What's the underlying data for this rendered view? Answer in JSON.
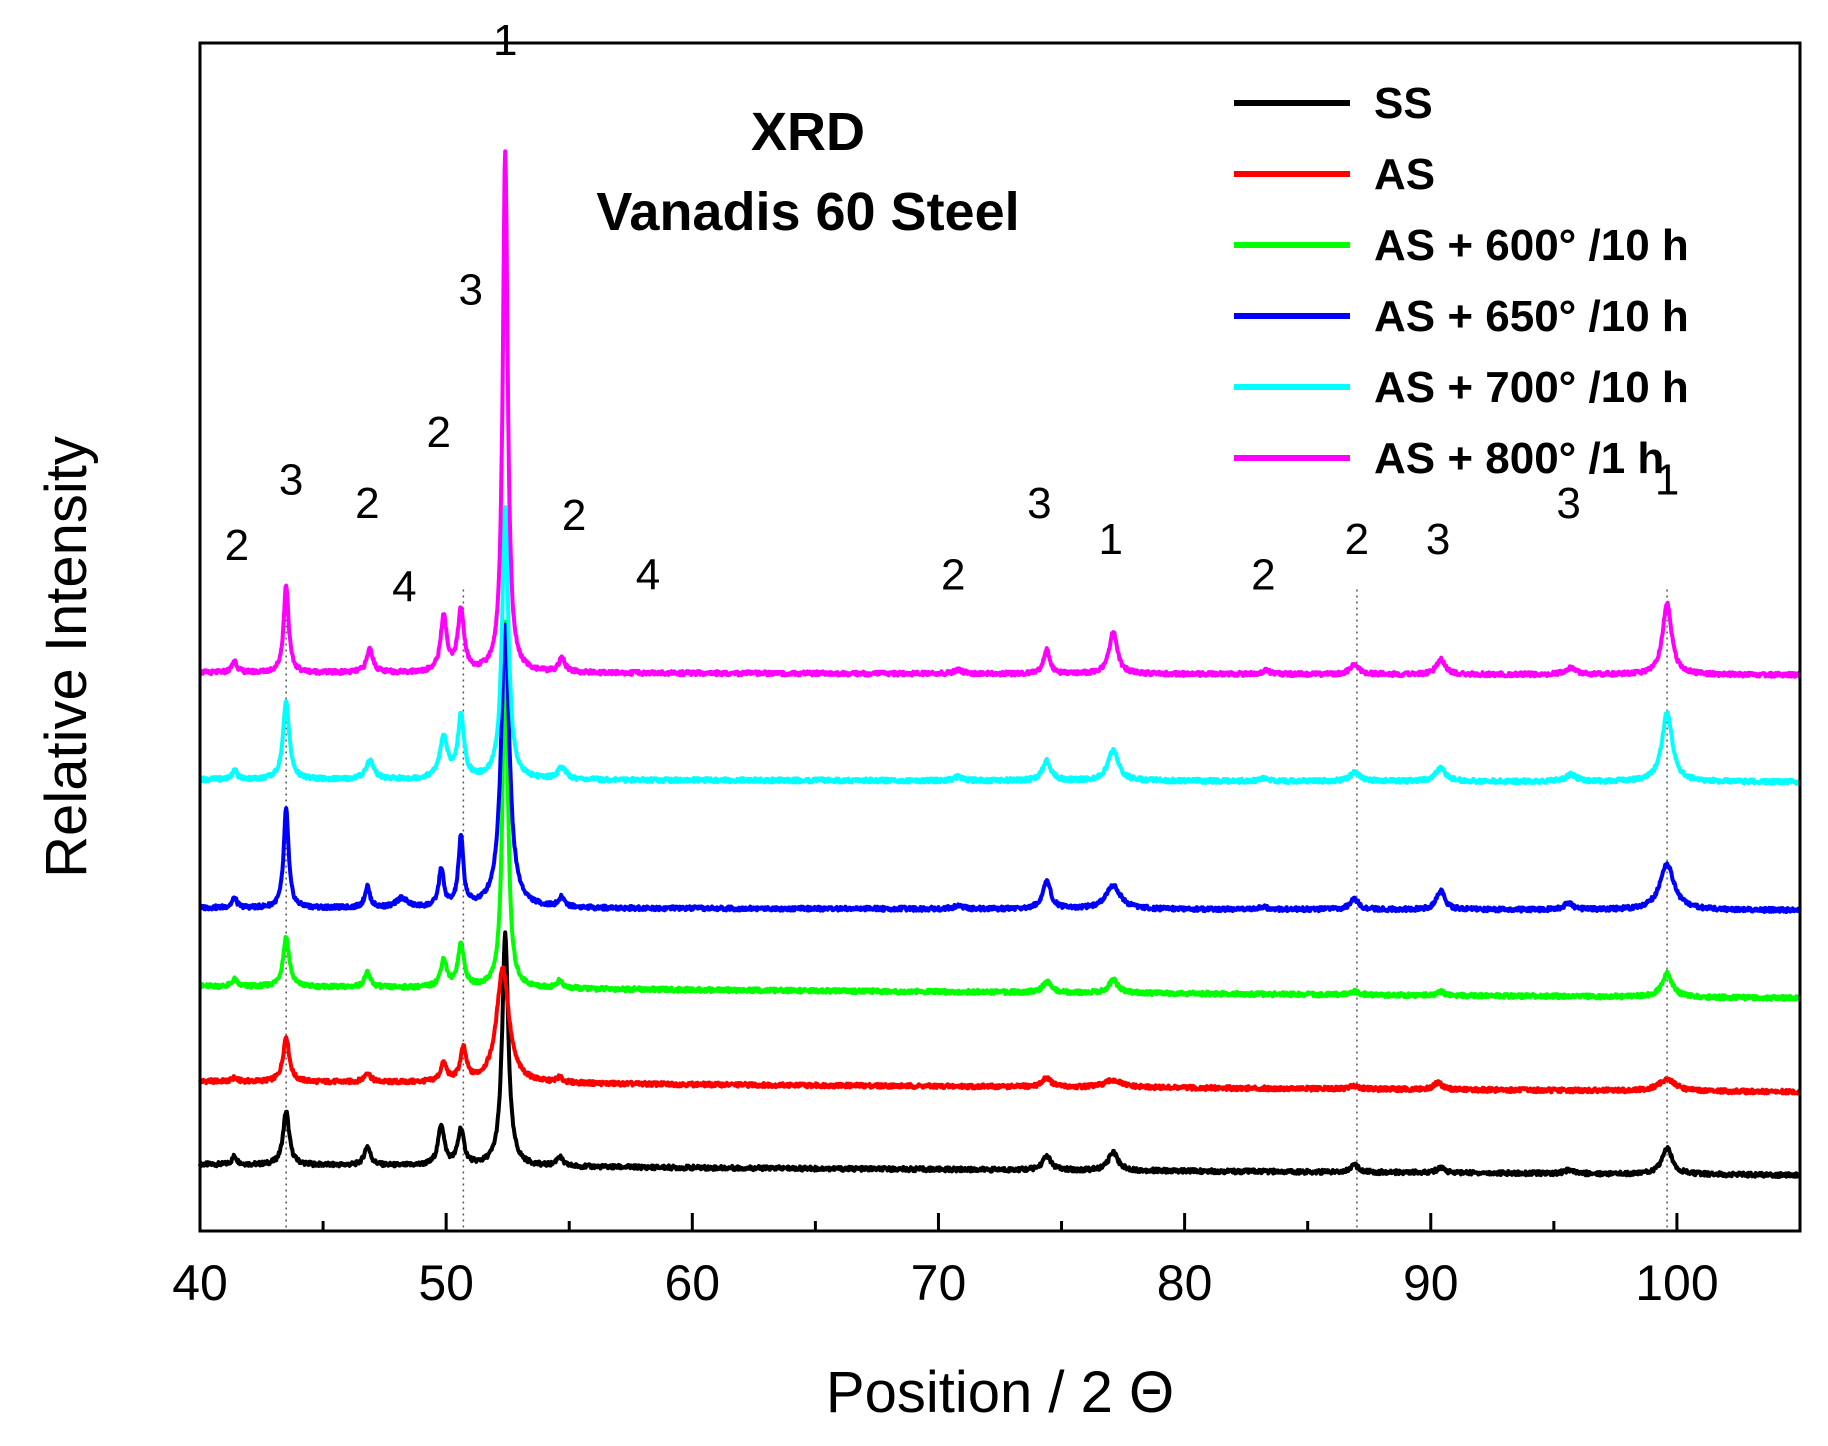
{
  "chart_data": {
    "type": "line",
    "title": "XRD",
    "subtitle": "Vanadis  60 Steel",
    "xlabel": "Position / 2 Θ",
    "ylabel": "Relative Intensity",
    "xlim": [
      40,
      105
    ],
    "ylim": [
      0,
      100
    ],
    "xticks": [
      40,
      50,
      60,
      70,
      80,
      90,
      100
    ],
    "xtick_labels": [
      "40",
      "50",
      "60",
      "70",
      "80",
      "90",
      "100"
    ],
    "reference_lines_x": [
      43.5,
      50.7,
      87.0,
      99.6
    ],
    "legend_position": "top-right",
    "series": [
      {
        "name": "SS",
        "color": "#000000",
        "baseline_start": 5.6,
        "baseline_end": 4.7,
        "peaks": [
          [
            41.4,
            0.7,
            0.12
          ],
          [
            43.5,
            4.5,
            0.15
          ],
          [
            46.8,
            1.6,
            0.15
          ],
          [
            49.8,
            3.4,
            0.15
          ],
          [
            50.6,
            3.0,
            0.15
          ],
          [
            52.4,
            19.5,
            0.15
          ],
          [
            54.6,
            0.8,
            0.15
          ],
          [
            74.4,
            1.2,
            0.2
          ],
          [
            77.1,
            1.6,
            0.22
          ],
          [
            86.9,
            0.6,
            0.2
          ],
          [
            90.4,
            0.4,
            0.2
          ],
          [
            95.6,
            0.3,
            0.2
          ],
          [
            99.6,
            2.2,
            0.25
          ]
        ]
      },
      {
        "name": "AS",
        "color": "#ff0000",
        "baseline_start": 12.6,
        "baseline_end": 11.7,
        "peaks": [
          [
            41.4,
            0.3,
            0.12
          ],
          [
            43.5,
            3.8,
            0.15
          ],
          [
            46.8,
            0.8,
            0.15
          ],
          [
            49.9,
            1.5,
            0.15
          ],
          [
            50.7,
            2.7,
            0.15
          ],
          [
            52.3,
            9.7,
            0.3
          ],
          [
            54.6,
            0.4,
            0.15
          ],
          [
            74.4,
            0.8,
            0.2
          ],
          [
            77.1,
            0.6,
            0.4
          ],
          [
            86.9,
            0.3,
            0.2
          ],
          [
            90.3,
            0.6,
            0.2
          ],
          [
            99.6,
            1.0,
            0.4
          ]
        ]
      },
      {
        "name": "AS + 600° /10 h",
        "color": "#00ff00",
        "baseline_start": 20.6,
        "baseline_end": 19.6,
        "peaks": [
          [
            41.4,
            0.6,
            0.12
          ],
          [
            43.5,
            4.2,
            0.15
          ],
          [
            46.8,
            1.2,
            0.15
          ],
          [
            49.9,
            2.3,
            0.15
          ],
          [
            50.6,
            3.6,
            0.15
          ],
          [
            52.4,
            31.0,
            0.12
          ],
          [
            54.6,
            0.6,
            0.15
          ],
          [
            74.4,
            0.9,
            0.2
          ],
          [
            77.1,
            1.1,
            0.22
          ],
          [
            86.9,
            0.3,
            0.2
          ],
          [
            90.4,
            0.3,
            0.2
          ],
          [
            99.6,
            2.0,
            0.25
          ]
        ]
      },
      {
        "name": "AS + 650° /10 h",
        "color": "#0000ff",
        "baseline_start": 27.2,
        "baseline_end": 27.0,
        "peaks": [
          [
            41.4,
            0.8,
            0.12
          ],
          [
            43.5,
            8.3,
            0.12
          ],
          [
            46.8,
            1.8,
            0.12
          ],
          [
            48.2,
            0.8,
            0.25
          ],
          [
            49.8,
            3.2,
            0.12
          ],
          [
            50.6,
            5.8,
            0.12
          ],
          [
            52.4,
            24.0,
            0.2
          ],
          [
            54.7,
            0.8,
            0.15
          ],
          [
            70.8,
            0.3,
            0.2
          ],
          [
            74.4,
            2.3,
            0.2
          ],
          [
            77.1,
            2.0,
            0.35
          ],
          [
            83.2,
            0.2,
            0.2
          ],
          [
            86.9,
            0.9,
            0.2
          ],
          [
            90.4,
            1.6,
            0.2
          ],
          [
            95.6,
            0.6,
            0.2
          ],
          [
            99.6,
            3.8,
            0.35
          ]
        ]
      },
      {
        "name": "AS + 700° /10 h",
        "color": "#00ffff",
        "baseline_start": 38.0,
        "baseline_end": 37.8,
        "peaks": [
          [
            41.4,
            0.8,
            0.12
          ],
          [
            43.5,
            6.6,
            0.15
          ],
          [
            46.9,
            1.6,
            0.2
          ],
          [
            49.9,
            3.4,
            0.2
          ],
          [
            50.6,
            5.2,
            0.15
          ],
          [
            52.4,
            23.0,
            0.15
          ],
          [
            54.7,
            1.0,
            0.2
          ],
          [
            70.8,
            0.3,
            0.2
          ],
          [
            74.4,
            1.7,
            0.2
          ],
          [
            77.1,
            2.6,
            0.25
          ],
          [
            83.2,
            0.2,
            0.2
          ],
          [
            86.9,
            0.7,
            0.25
          ],
          [
            90.4,
            1.1,
            0.25
          ],
          [
            95.7,
            0.6,
            0.25
          ],
          [
            99.6,
            5.8,
            0.25
          ]
        ]
      },
      {
        "name": "AS + 800° /1 h",
        "color": "#ff00ff",
        "baseline_start": 47.0,
        "baseline_end": 46.8,
        "peaks": [
          [
            41.4,
            1.0,
            0.12
          ],
          [
            43.5,
            7.4,
            0.12
          ],
          [
            46.9,
            2.0,
            0.15
          ],
          [
            49.9,
            4.6,
            0.15
          ],
          [
            50.6,
            5.2,
            0.15
          ],
          [
            52.4,
            44.0,
            0.12
          ],
          [
            54.7,
            1.2,
            0.15
          ],
          [
            70.8,
            0.3,
            0.2
          ],
          [
            74.4,
            2.0,
            0.15
          ],
          [
            77.1,
            3.5,
            0.2
          ],
          [
            83.3,
            0.3,
            0.2
          ],
          [
            86.9,
            0.9,
            0.2
          ],
          [
            90.4,
            1.3,
            0.2
          ],
          [
            95.7,
            0.6,
            0.25
          ],
          [
            99.6,
            6.0,
            0.22
          ]
        ]
      }
    ],
    "annotations": [
      {
        "text": "1",
        "x": 52.4,
        "y": 99.0
      },
      {
        "text": "3",
        "x": 51.0,
        "y": 78.0
      },
      {
        "text": "2",
        "x": 41.5,
        "y": 56.5
      },
      {
        "text": "3",
        "x": 43.7,
        "y": 62.0
      },
      {
        "text": "2",
        "x": 46.8,
        "y": 60.0
      },
      {
        "text": "4",
        "x": 48.3,
        "y": 53.0
      },
      {
        "text": "2",
        "x": 49.7,
        "y": 66.0
      },
      {
        "text": "2",
        "x": 55.2,
        "y": 59.0
      },
      {
        "text": "4",
        "x": 58.2,
        "y": 54.0
      },
      {
        "text": "2",
        "x": 70.6,
        "y": 54.0
      },
      {
        "text": "3",
        "x": 74.1,
        "y": 60.0
      },
      {
        "text": "1",
        "x": 77.0,
        "y": 57.0
      },
      {
        "text": "2",
        "x": 83.2,
        "y": 54.0
      },
      {
        "text": "2",
        "x": 87.0,
        "y": 57.0
      },
      {
        "text": "3",
        "x": 90.3,
        "y": 57.0
      },
      {
        "text": "3",
        "x": 95.6,
        "y": 60.0
      },
      {
        "text": "1",
        "x": 99.6,
        "y": 62.0
      }
    ]
  }
}
